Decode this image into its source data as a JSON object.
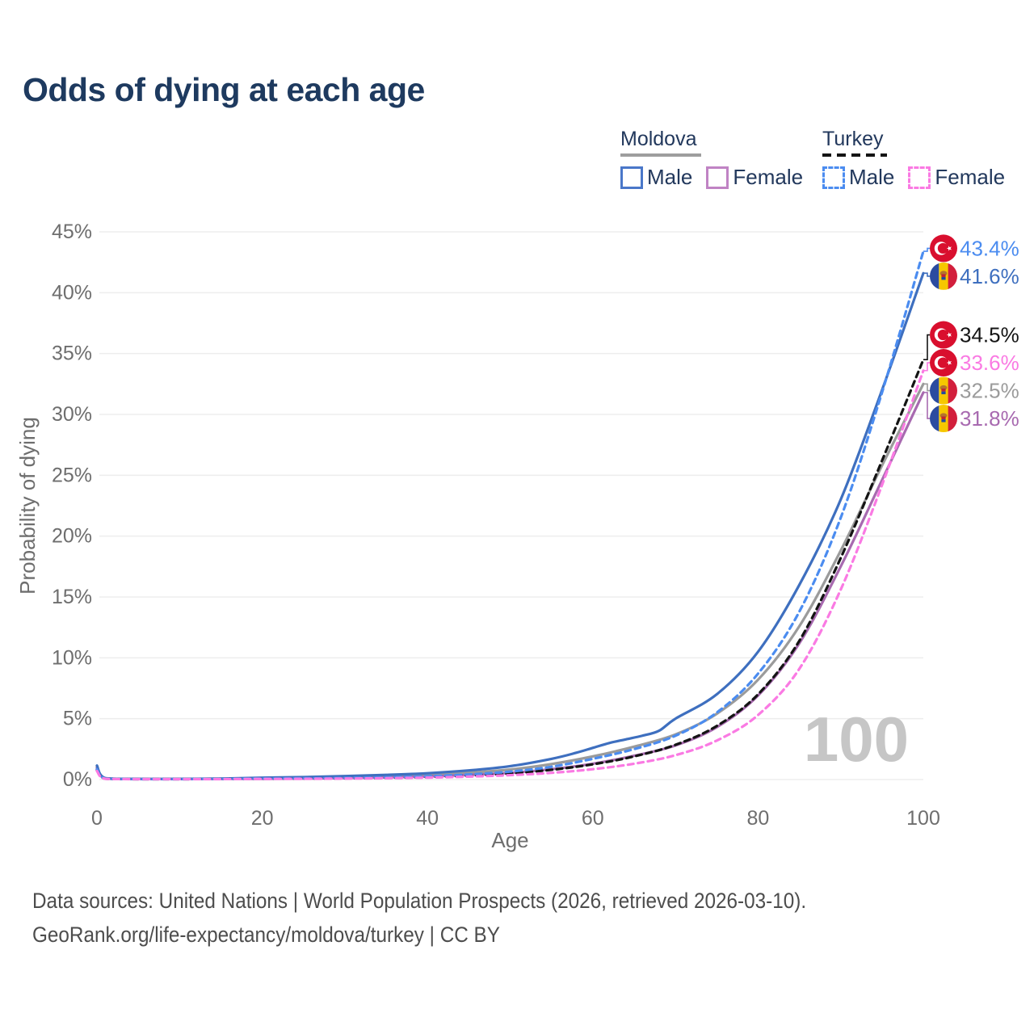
{
  "title": "Odds of dying at each age",
  "legend": {
    "groups": [
      {
        "country": "Moldova",
        "line_style": "solid",
        "underline_color": "#9e9e9e",
        "items": [
          {
            "label": "Male",
            "box_color": "#4a77c9",
            "dashed": false
          },
          {
            "label": "Female",
            "box_color": "#c083c4",
            "dashed": false
          }
        ]
      },
      {
        "country": "Turkey",
        "line_style": "dashed",
        "underline_color": "#141414",
        "items": [
          {
            "label": "Male",
            "box_color": "#4b8cf0",
            "dashed": true
          },
          {
            "label": "Female",
            "box_color": "#fa7ae3",
            "dashed": true
          }
        ]
      }
    ]
  },
  "axes": {
    "x_title": "Age",
    "y_title": "Probability of dying",
    "x_ticks": [
      0,
      20,
      40,
      60,
      80,
      100
    ],
    "y_ticks": [
      0,
      5,
      10,
      15,
      20,
      25,
      30,
      35,
      40,
      45
    ],
    "y_tick_suffix": "%",
    "grid_color": "#ededed",
    "tick_color": "#6e6e6e"
  },
  "watermark": "100",
  "footer": {
    "line1": "Data sources: United Nations | World Population Prospects (2026, retrieved 2026-03-10).",
    "line2": "GeoRank.org/life-expectancy/moldova/turkey | CC BY"
  },
  "chart_data": {
    "type": "line",
    "xlabel": "Age",
    "ylabel": "Probability of dying",
    "x_range": [
      0,
      100
    ],
    "y_range_percent": [
      0,
      45
    ],
    "grid": true,
    "series": [
      {
        "name": "Moldova both sexes",
        "country": "moldova",
        "sex": "both",
        "color": "#9b9b9b",
        "dash": false,
        "end_label": "32.5%",
        "points": [
          [
            0,
            1.05
          ],
          [
            1,
            0.1
          ],
          [
            5,
            0.045
          ],
          [
            10,
            0.045
          ],
          [
            15,
            0.065
          ],
          [
            20,
            0.1
          ],
          [
            25,
            0.14
          ],
          [
            30,
            0.2
          ],
          [
            35,
            0.27
          ],
          [
            40,
            0.38
          ],
          [
            45,
            0.56
          ],
          [
            50,
            0.82
          ],
          [
            55,
            1.27
          ],
          [
            60,
            1.9
          ],
          [
            65,
            2.7
          ],
          [
            70,
            3.7
          ],
          [
            75,
            5.4
          ],
          [
            80,
            8.2
          ],
          [
            85,
            12.6
          ],
          [
            90,
            18.8
          ],
          [
            95,
            25.8
          ],
          [
            100,
            32.5
          ]
        ]
      },
      {
        "name": "Moldova female",
        "country": "moldova",
        "sex": "female",
        "color": "#a86ab0",
        "dash": false,
        "end_label": "31.8%",
        "points": [
          [
            0,
            0.95
          ],
          [
            1,
            0.09
          ],
          [
            5,
            0.04
          ],
          [
            10,
            0.04
          ],
          [
            15,
            0.05
          ],
          [
            20,
            0.06
          ],
          [
            25,
            0.08
          ],
          [
            30,
            0.12
          ],
          [
            35,
            0.17
          ],
          [
            40,
            0.25
          ],
          [
            45,
            0.38
          ],
          [
            50,
            0.55
          ],
          [
            55,
            0.85
          ],
          [
            60,
            1.3
          ],
          [
            65,
            1.95
          ],
          [
            70,
            2.8
          ],
          [
            75,
            4.3
          ],
          [
            80,
            6.9
          ],
          [
            85,
            11.2
          ],
          [
            90,
            17.5
          ],
          [
            95,
            24.6
          ],
          [
            100,
            31.8
          ]
        ]
      },
      {
        "name": "Moldova male",
        "country": "moldova",
        "sex": "male",
        "color": "#3e6fbf",
        "dash": false,
        "end_label": "41.6%",
        "points": [
          [
            0,
            1.15
          ],
          [
            1,
            0.12
          ],
          [
            5,
            0.05
          ],
          [
            10,
            0.05
          ],
          [
            15,
            0.08
          ],
          [
            20,
            0.15
          ],
          [
            25,
            0.2
          ],
          [
            30,
            0.28
          ],
          [
            35,
            0.38
          ],
          [
            40,
            0.52
          ],
          [
            45,
            0.75
          ],
          [
            50,
            1.1
          ],
          [
            55,
            1.7
          ],
          [
            58,
            2.2
          ],
          [
            60,
            2.6
          ],
          [
            62,
            3.0
          ],
          [
            64,
            3.3
          ],
          [
            66,
            3.6
          ],
          [
            68,
            4.0
          ],
          [
            70,
            5.0
          ],
          [
            75,
            7.0
          ],
          [
            80,
            10.5
          ],
          [
            85,
            16.0
          ],
          [
            90,
            23.0
          ],
          [
            95,
            32.0
          ],
          [
            100,
            41.6
          ]
        ]
      },
      {
        "name": "Turkey both sexes",
        "country": "turkey",
        "sex": "both",
        "color": "#141414",
        "dash": true,
        "end_label": "34.5%",
        "points": [
          [
            0,
            0.8
          ],
          [
            1,
            0.07
          ],
          [
            5,
            0.028
          ],
          [
            10,
            0.028
          ],
          [
            15,
            0.045
          ],
          [
            20,
            0.065
          ],
          [
            25,
            0.08
          ],
          [
            30,
            0.1
          ],
          [
            35,
            0.14
          ],
          [
            40,
            0.21
          ],
          [
            45,
            0.33
          ],
          [
            50,
            0.5
          ],
          [
            55,
            0.8
          ],
          [
            60,
            1.25
          ],
          [
            65,
            1.9
          ],
          [
            70,
            2.85
          ],
          [
            75,
            4.4
          ],
          [
            80,
            7.0
          ],
          [
            85,
            11.4
          ],
          [
            90,
            18.2
          ],
          [
            95,
            26.2
          ],
          [
            100,
            34.5
          ]
        ]
      },
      {
        "name": "Turkey male",
        "country": "turkey",
        "sex": "male",
        "color": "#4b8cf0",
        "dash": true,
        "end_label": "43.4%",
        "points": [
          [
            0,
            0.85
          ],
          [
            1,
            0.08
          ],
          [
            5,
            0.03
          ],
          [
            10,
            0.03
          ],
          [
            15,
            0.05
          ],
          [
            20,
            0.08
          ],
          [
            25,
            0.1
          ],
          [
            30,
            0.13
          ],
          [
            35,
            0.18
          ],
          [
            40,
            0.27
          ],
          [
            45,
            0.42
          ],
          [
            50,
            0.65
          ],
          [
            55,
            1.05
          ],
          [
            60,
            1.7
          ],
          [
            65,
            2.5
          ],
          [
            70,
            3.6
          ],
          [
            75,
            5.5
          ],
          [
            80,
            8.7
          ],
          [
            85,
            13.8
          ],
          [
            90,
            21.5
          ],
          [
            95,
            31.8
          ],
          [
            100,
            43.4
          ]
        ]
      },
      {
        "name": "Turkey female",
        "country": "turkey",
        "sex": "female",
        "color": "#fa7ae3",
        "dash": true,
        "end_label": "33.6%",
        "points": [
          [
            0,
            0.7
          ],
          [
            1,
            0.06
          ],
          [
            5,
            0.025
          ],
          [
            10,
            0.025
          ],
          [
            15,
            0.035
          ],
          [
            20,
            0.05
          ],
          [
            25,
            0.06
          ],
          [
            30,
            0.08
          ],
          [
            35,
            0.11
          ],
          [
            40,
            0.16
          ],
          [
            45,
            0.24
          ],
          [
            50,
            0.36
          ],
          [
            55,
            0.55
          ],
          [
            60,
            0.85
          ],
          [
            65,
            1.3
          ],
          [
            70,
            2.0
          ],
          [
            75,
            3.2
          ],
          [
            80,
            5.3
          ],
          [
            85,
            9.1
          ],
          [
            90,
            15.6
          ],
          [
            95,
            24.2
          ],
          [
            100,
            33.6
          ]
        ]
      }
    ],
    "end_label_order": [
      "Turkey male",
      "Moldova male",
      "Turkey both sexes",
      "Turkey female",
      "Moldova both sexes",
      "Moldova female"
    ],
    "flag_colors": {
      "turkey_red": "#d90f2e",
      "moldova_blue": "#2b4ba0",
      "moldova_yellow": "#f6c700",
      "moldova_red": "#d21f3c"
    }
  }
}
